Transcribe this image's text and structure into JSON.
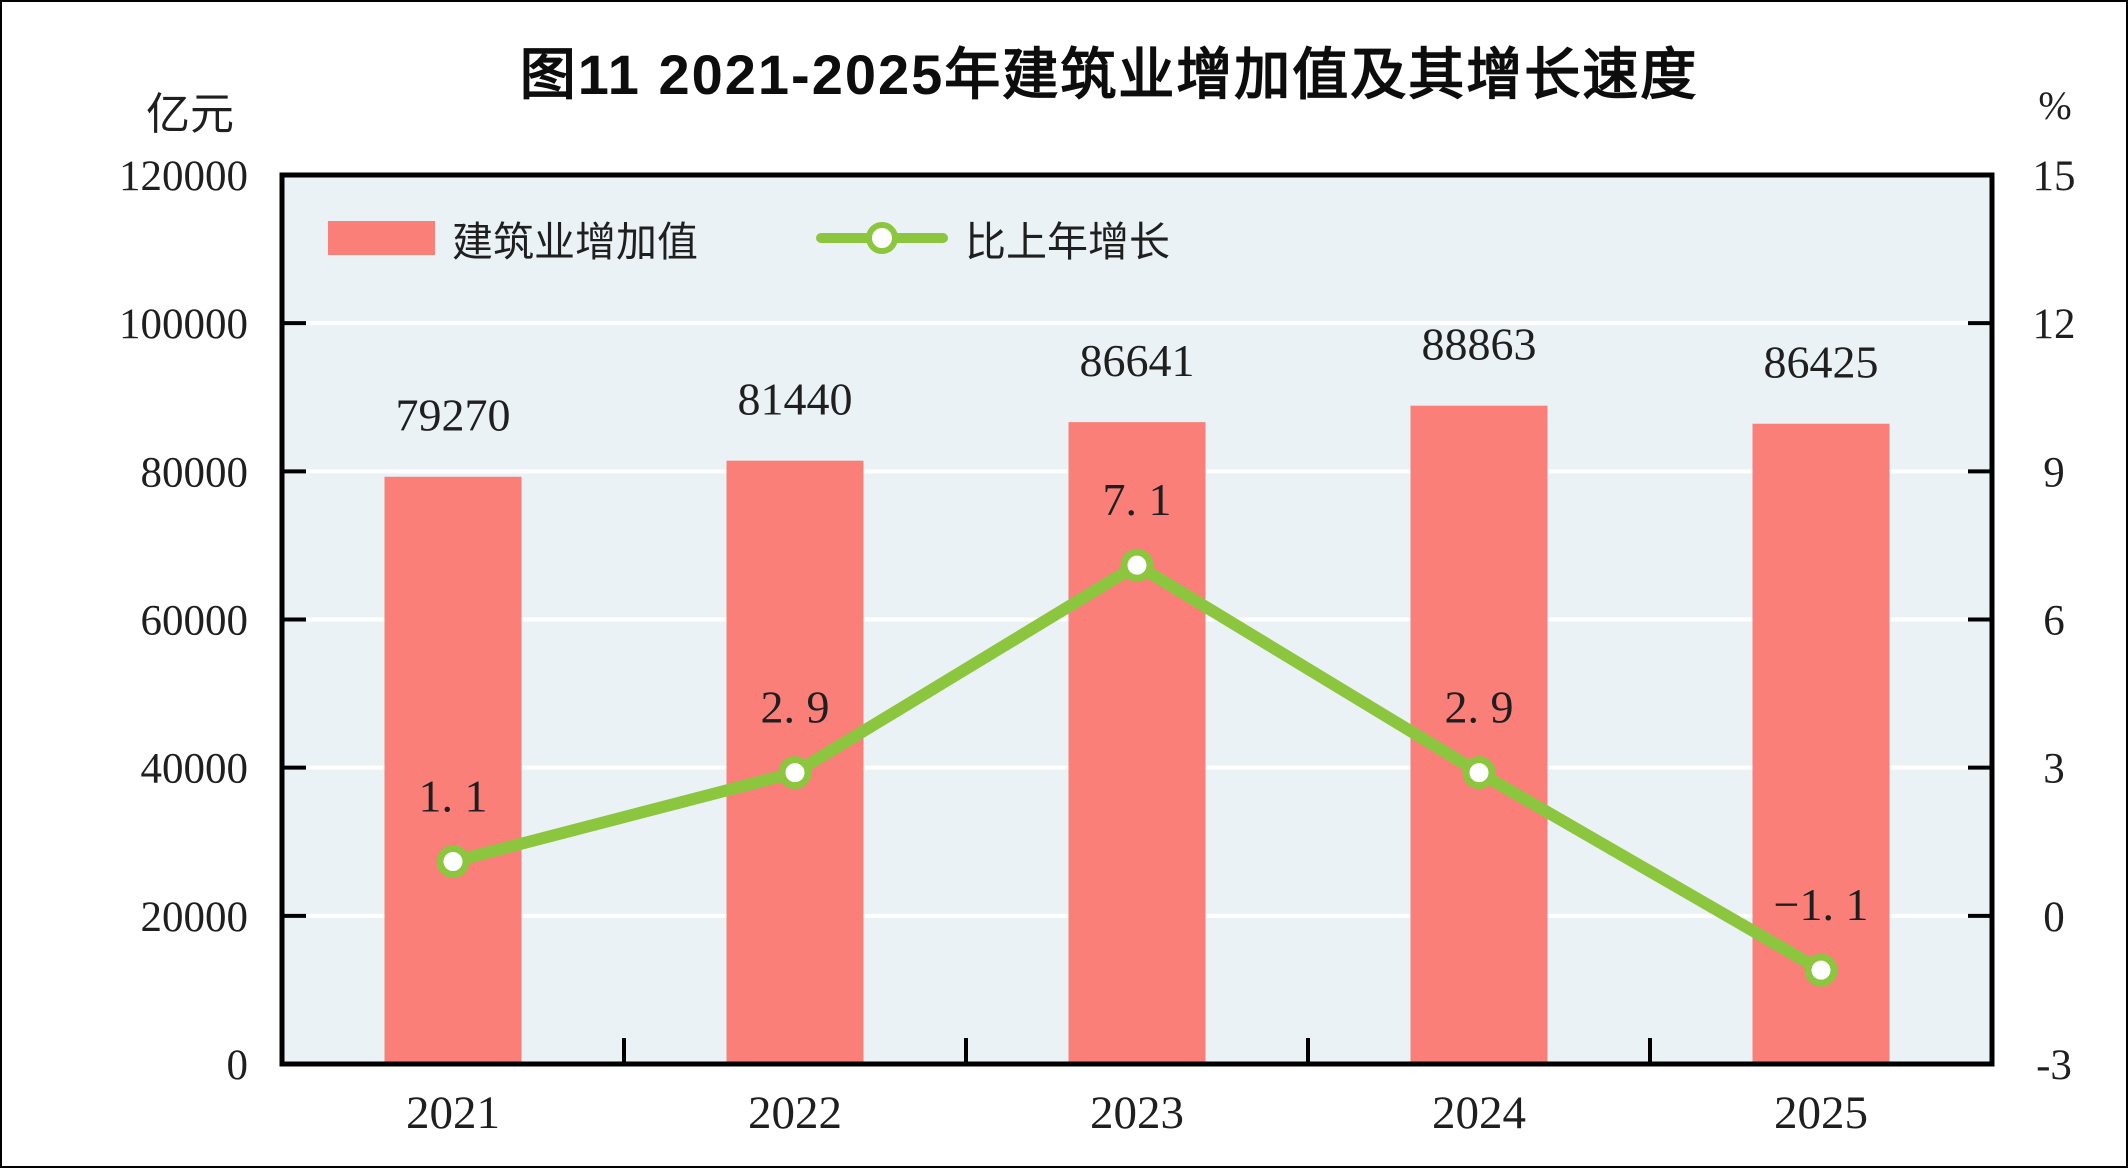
{
  "title": "图11  2021-2025年建筑业增加值及其增长速度",
  "axes": {
    "left": {
      "unit": "亿元",
      "tick_labels": [
        "120000",
        "100000",
        "80000",
        "60000",
        "40000",
        "20000",
        "0"
      ]
    },
    "right": {
      "unit": "%",
      "tick_labels": [
        "15",
        "12",
        "9",
        "6",
        "3",
        "0",
        "-3"
      ]
    },
    "x": {
      "tick_labels": [
        "2021",
        "2022",
        "2023",
        "2024",
        "2025"
      ]
    }
  },
  "legend": {
    "items": [
      {
        "name": "建筑业增加值",
        "swatch": "bar",
        "color": "#FA7F78"
      },
      {
        "name": "比上年增长",
        "swatch": "line",
        "color": "#8CC63E"
      }
    ]
  },
  "chart_data": {
    "type": "bar+line",
    "title": "图11 2021-2025年建筑业增加值及其增长速度",
    "categories": [
      "2021",
      "2022",
      "2023",
      "2024",
      "2025"
    ],
    "series": [
      {
        "name": "建筑业增加值",
        "type": "bar",
        "axis": "left",
        "unit": "亿元",
        "values": [
          79270,
          81440,
          86641,
          88863,
          86425
        ],
        "labels": [
          "79270",
          "81440",
          "86641",
          "88863",
          "86425"
        ],
        "color": "#FA7F78"
      },
      {
        "name": "比上年增长",
        "type": "line",
        "axis": "right",
        "unit": "%",
        "values": [
          1.1,
          2.9,
          7.1,
          2.9,
          -1.1
        ],
        "labels": [
          "1. 1",
          "2. 9",
          "7. 1",
          "2. 9",
          "−1. 1"
        ],
        "color": "#8CC63E",
        "marker": {
          "fill": "#ffffff",
          "stroke": "#8CC63E"
        }
      }
    ],
    "left_axis": {
      "label": "亿元",
      "min": 0,
      "max": 120000,
      "step": 20000
    },
    "right_axis": {
      "label": "%",
      "min": -3,
      "max": 15,
      "step": 3
    },
    "plot_background": "#EAF2F6",
    "gridline_color": "#FFFFFF",
    "axis_color": "#000000",
    "grid": true,
    "legend_position": "top-left"
  }
}
